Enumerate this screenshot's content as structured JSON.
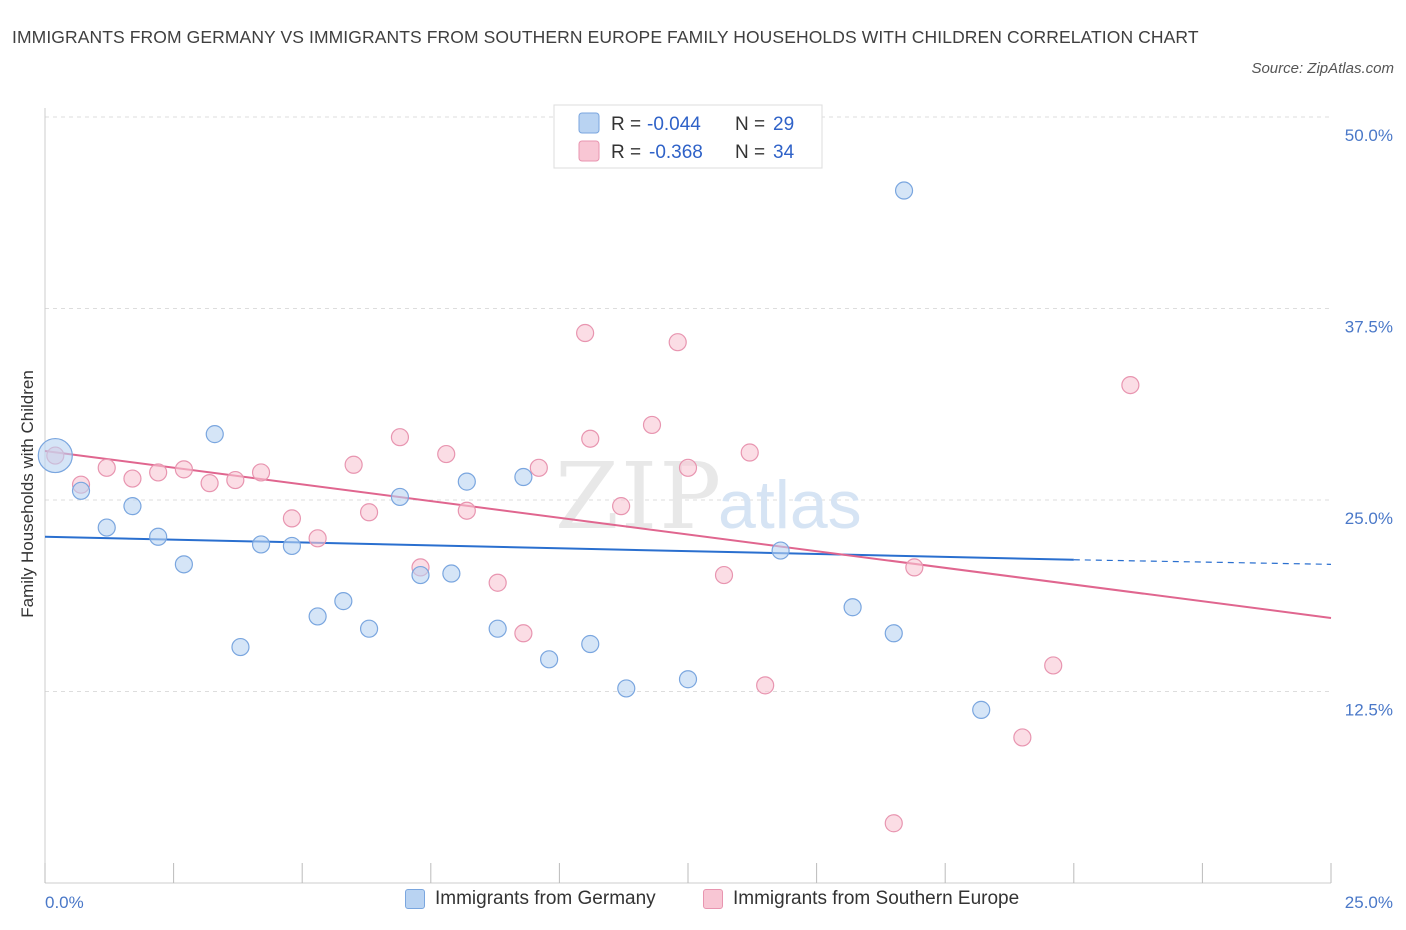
{
  "title": "IMMIGRANTS FROM GERMANY VS IMMIGRANTS FROM SOUTHERN EUROPE FAMILY HOUSEHOLDS WITH CHILDREN CORRELATION CHART",
  "source": "Source: ZipAtlas.com",
  "watermark": {
    "zip": "ZIP",
    "atlas": "atlas"
  },
  "legend_top": {
    "germany": {
      "r_label": "R =",
      "r_value": "-0.044",
      "n_label": "N =",
      "n_value": "29"
    },
    "southern": {
      "r_label": "R =",
      "r_value": "-0.368",
      "n_label": "N =",
      "n_value": "34"
    }
  },
  "legend_bottom": {
    "germany": "Immigrants from Germany",
    "southern": "Immigrants from Southern Europe"
  },
  "colors": {
    "germany_fill": "#b9d3f2",
    "germany_stroke": "#7aa6df",
    "germany_line": "#2a6fcf",
    "southern_fill": "#f8c6d4",
    "southern_stroke": "#e895b0",
    "southern_line": "#e0668f",
    "axis_text": "#4a78c8",
    "grid": "#dddddd"
  },
  "chart_data": {
    "type": "scatter",
    "title": "IMMIGRANTS FROM GERMANY VS IMMIGRANTS FROM SOUTHERN EUROPE FAMILY HOUSEHOLDS WITH CHILDREN CORRELATION CHART",
    "xlabel": "",
    "ylabel": "Family Households with Children",
    "xlim": [
      0,
      25
    ],
    "ylim": [
      0,
      50
    ],
    "x_tick_labels": [
      "0.0%",
      "25.0%"
    ],
    "y_ticks": [
      12.5,
      25.0,
      37.5,
      50.0
    ],
    "y_tick_labels": [
      "12.5%",
      "25.0%",
      "37.5%",
      "50.0%"
    ],
    "grid": true,
    "legend_position": "top-center",
    "series": [
      {
        "name": "Immigrants from Germany",
        "R": -0.044,
        "N": 29,
        "trend": {
          "x0": 0,
          "y0": 22.6,
          "x1": 20,
          "y1": 21.1,
          "dashed_to_x": 25,
          "dashed_to_y": 20.8
        },
        "points": [
          [
            0.2,
            27.9,
            "large"
          ],
          [
            0.7,
            25.6
          ],
          [
            1.2,
            23.2
          ],
          [
            1.7,
            24.6
          ],
          [
            2.2,
            22.6
          ],
          [
            2.7,
            20.8
          ],
          [
            3.3,
            29.3
          ],
          [
            3.8,
            15.4
          ],
          [
            4.2,
            22.1
          ],
          [
            4.8,
            22.0
          ],
          [
            5.3,
            17.4
          ],
          [
            5.8,
            18.4
          ],
          [
            6.3,
            16.6
          ],
          [
            6.9,
            25.2
          ],
          [
            7.3,
            20.1
          ],
          [
            7.9,
            20.2
          ],
          [
            8.2,
            26.2
          ],
          [
            8.8,
            16.6
          ],
          [
            9.3,
            26.5
          ],
          [
            9.8,
            14.6
          ],
          [
            10.6,
            15.6
          ],
          [
            11.3,
            12.7
          ],
          [
            11.8,
            50.0
          ],
          [
            12.5,
            13.3
          ],
          [
            14.3,
            21.7
          ],
          [
            15.7,
            18.0
          ],
          [
            16.5,
            16.3
          ],
          [
            16.7,
            45.2
          ],
          [
            18.2,
            11.3
          ]
        ]
      },
      {
        "name": "Immigrants from Southern Europe",
        "R": -0.368,
        "N": 34,
        "trend": {
          "x0": 0,
          "y0": 28.2,
          "x1": 25,
          "y1": 17.3
        },
        "points": [
          [
            0.2,
            27.9
          ],
          [
            0.7,
            26.0
          ],
          [
            1.2,
            27.1
          ],
          [
            1.7,
            26.4
          ],
          [
            2.2,
            26.8
          ],
          [
            2.7,
            27.0
          ],
          [
            3.2,
            26.1
          ],
          [
            3.7,
            26.3
          ],
          [
            4.2,
            26.8
          ],
          [
            4.8,
            23.8
          ],
          [
            5.3,
            22.5
          ],
          [
            6.0,
            27.3
          ],
          [
            6.3,
            24.2
          ],
          [
            6.9,
            29.1
          ],
          [
            7.3,
            20.6
          ],
          [
            7.8,
            28.0
          ],
          [
            8.2,
            24.3
          ],
          [
            8.8,
            19.6
          ],
          [
            9.3,
            16.3
          ],
          [
            9.6,
            27.1
          ],
          [
            10.5,
            35.9
          ],
          [
            10.6,
            29.0
          ],
          [
            11.2,
            24.6
          ],
          [
            11.8,
            29.9
          ],
          [
            12.3,
            35.3
          ],
          [
            12.5,
            27.1
          ],
          [
            13.2,
            20.1
          ],
          [
            13.7,
            28.1
          ],
          [
            14.0,
            12.9
          ],
          [
            16.5,
            3.9
          ],
          [
            16.9,
            20.6
          ],
          [
            19.0,
            9.5
          ],
          [
            19.6,
            14.2
          ],
          [
            21.1,
            32.5
          ]
        ]
      }
    ]
  }
}
